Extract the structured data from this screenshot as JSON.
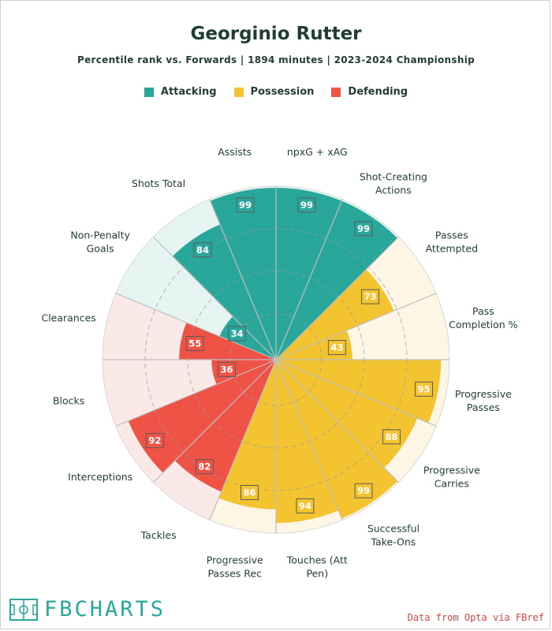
{
  "title": "Georginio Rutter",
  "subtitle": "Percentile rank vs. Forwards | 1894 minutes | 2023-2024 Championship",
  "legend": [
    {
      "label": "Attacking",
      "color": "#2aa79b"
    },
    {
      "label": "Possession",
      "color": "#f4c430"
    },
    {
      "label": "Defending",
      "color": "#ef5346"
    }
  ],
  "logo": {
    "text": "FBCHARTS",
    "icon": "pitch-icon"
  },
  "source": "Data from Opta via FBref",
  "colors": {
    "Attacking": "#2aa79b",
    "Possession": "#f4c430",
    "Defending": "#ef5346",
    "Attacking_bg": "#e6f5f2",
    "Possession_bg": "#fdf6e5",
    "Defending_bg": "#fbe9e7"
  },
  "chart_data": {
    "type": "radar",
    "title": "Georginio Rutter",
    "range": [
      0,
      100
    ],
    "categories": [
      {
        "label": [
          "npxG + xAG"
        ],
        "value": 99,
        "group": "Attacking"
      },
      {
        "label": [
          "Shot-Creating",
          "Actions"
        ],
        "value": 99,
        "group": "Attacking"
      },
      {
        "label": [
          "Passes",
          "Attempted"
        ],
        "value": 73,
        "group": "Possession"
      },
      {
        "label": [
          "Pass",
          "Completion %"
        ],
        "value": 43,
        "group": "Possession"
      },
      {
        "label": [
          "Progressive",
          "Passes"
        ],
        "value": 95,
        "group": "Possession"
      },
      {
        "label": [
          "Progressive",
          "Carries"
        ],
        "value": 88,
        "group": "Possession"
      },
      {
        "label": [
          "Successful",
          "Take-Ons"
        ],
        "value": 99,
        "group": "Possession"
      },
      {
        "label": [
          "Touches (Att",
          "Pen)"
        ],
        "value": 94,
        "group": "Possession"
      },
      {
        "label": [
          "Progressive",
          "Passes Rec"
        ],
        "value": 86,
        "group": "Possession"
      },
      {
        "label": [
          "Tackles"
        ],
        "value": 82,
        "group": "Defending"
      },
      {
        "label": [
          "Interceptions"
        ],
        "value": 92,
        "group": "Defending"
      },
      {
        "label": [
          "Blocks"
        ],
        "value": 36,
        "group": "Defending"
      },
      {
        "label": [
          "Clearances"
        ],
        "value": 55,
        "group": "Defending"
      },
      {
        "label": [
          "Non-Penalty",
          "Goals"
        ],
        "value": 34,
        "group": "Attacking"
      },
      {
        "label": [
          "Shots Total"
        ],
        "value": 84,
        "group": "Attacking"
      },
      {
        "label": [
          "Assists"
        ],
        "value": 99,
        "group": "Attacking"
      }
    ]
  }
}
